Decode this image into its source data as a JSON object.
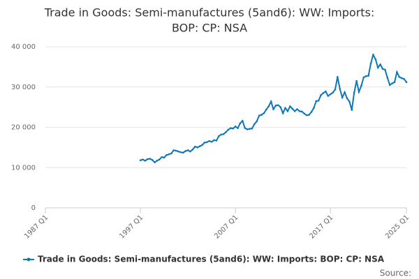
{
  "chart_data": {
    "type": "line",
    "title": "Trade in Goods: Semi-manufactures (5and6): WW: Imports: BOP: CP: NSA",
    "source": "Source:",
    "xlim": [
      "1987 Q1",
      "2025 Q1"
    ],
    "xticks": [
      "1987 Q1",
      "1997 Q1",
      "2007 Q1",
      "2017 Q1",
      "2025 Q1"
    ],
    "ylim": [
      0,
      40000
    ],
    "yticks": [
      0,
      {
        "value": 10000,
        "label": "10 000"
      },
      {
        "value": 20000,
        "label": "20 000"
      },
      {
        "value": 30000,
        "label": "30 000"
      },
      {
        "value": 40000,
        "label": "40 000"
      }
    ],
    "grid": true,
    "legend": "bottom",
    "series": [
      {
        "name": "Trade in Goods: Semi-manufactures (5and6): WW: Imports: BOP: CP: NSA",
        "color": "#0d77b8",
        "x": [
          "1997 Q1",
          "1997 Q2",
          "1997 Q3",
          "1997 Q4",
          "1998 Q1",
          "1998 Q2",
          "1998 Q3",
          "1998 Q4",
          "1999 Q1",
          "1999 Q2",
          "1999 Q3",
          "1999 Q4",
          "2000 Q1",
          "2000 Q2",
          "2000 Q3",
          "2000 Q4",
          "2001 Q1",
          "2001 Q2",
          "2001 Q3",
          "2001 Q4",
          "2002 Q1",
          "2002 Q2",
          "2002 Q3",
          "2002 Q4",
          "2003 Q1",
          "2003 Q2",
          "2003 Q3",
          "2003 Q4",
          "2004 Q1",
          "2004 Q2",
          "2004 Q3",
          "2004 Q4",
          "2005 Q1",
          "2005 Q2",
          "2005 Q3",
          "2005 Q4",
          "2006 Q1",
          "2006 Q2",
          "2006 Q3",
          "2006 Q4",
          "2007 Q1",
          "2007 Q2",
          "2007 Q3",
          "2007 Q4",
          "2008 Q1",
          "2008 Q2",
          "2008 Q3",
          "2008 Q4",
          "2009 Q1",
          "2009 Q2",
          "2009 Q3",
          "2009 Q4",
          "2010 Q1",
          "2010 Q2",
          "2010 Q3",
          "2010 Q4",
          "2011 Q1",
          "2011 Q2",
          "2011 Q3",
          "2011 Q4",
          "2012 Q1",
          "2012 Q2",
          "2012 Q3",
          "2012 Q4",
          "2013 Q1",
          "2013 Q2",
          "2013 Q3",
          "2013 Q4",
          "2014 Q1",
          "2014 Q2",
          "2014 Q3",
          "2014 Q4",
          "2015 Q1",
          "2015 Q2",
          "2015 Q3",
          "2015 Q4",
          "2016 Q1",
          "2016 Q2",
          "2016 Q3",
          "2016 Q4",
          "2017 Q1",
          "2017 Q2",
          "2017 Q3",
          "2017 Q4",
          "2018 Q1",
          "2018 Q2",
          "2018 Q3",
          "2018 Q4",
          "2019 Q1",
          "2019 Q2",
          "2019 Q3",
          "2019 Q4",
          "2020 Q1",
          "2020 Q2",
          "2020 Q3",
          "2020 Q4",
          "2021 Q1",
          "2021 Q2",
          "2021 Q3",
          "2021 Q4",
          "2022 Q1",
          "2022 Q2",
          "2022 Q3",
          "2022 Q4",
          "2023 Q1",
          "2023 Q2",
          "2023 Q3",
          "2023 Q4",
          "2024 Q1",
          "2024 Q2",
          "2024 Q3",
          "2024 Q4",
          "2025 Q1"
        ],
        "values": [
          11800,
          12000,
          11700,
          12100,
          12200,
          11900,
          11300,
          11700,
          12000,
          12600,
          12500,
          13100,
          13300,
          13500,
          14300,
          14200,
          14000,
          13800,
          13700,
          14100,
          14300,
          14000,
          14500,
          15200,
          15000,
          15300,
          15600,
          16200,
          16300,
          16600,
          16400,
          16800,
          16700,
          17800,
          18200,
          18300,
          18800,
          19400,
          19800,
          19700,
          20200,
          19800,
          21000,
          21600,
          19800,
          19500,
          19600,
          19700,
          20800,
          21500,
          22900,
          23100,
          23500,
          24400,
          25200,
          26400,
          24500,
          25400,
          25500,
          25000,
          23500,
          24800,
          24000,
          25200,
          24600,
          24000,
          24500,
          24000,
          23900,
          23400,
          23000,
          23100,
          23800,
          24800,
          26500,
          26600,
          28000,
          28500,
          28900,
          27800,
          28200,
          28600,
          29400,
          32500,
          29500,
          27400,
          28700,
          27200,
          26400,
          24300,
          28600,
          31500,
          28800,
          30300,
          32400,
          32700,
          32800,
          35800,
          38000,
          36900,
          34800,
          35600,
          34500,
          34300,
          32300,
          30500,
          30900,
          31200,
          33700,
          32500,
          32200,
          32000,
          31200
        ]
      }
    ]
  }
}
